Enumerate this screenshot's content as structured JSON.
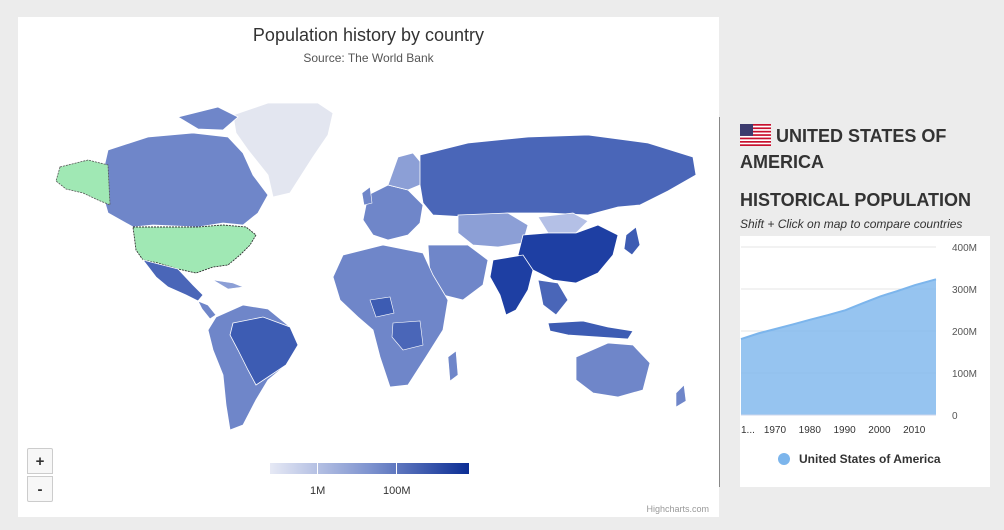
{
  "map": {
    "title": "Population history by country",
    "subtitle": "Source: The World Bank",
    "zoom_in_label": "+",
    "zoom_out_label": "-",
    "legend_labels": [
      "1M",
      "100M"
    ],
    "credits": "Highcharts.com",
    "selected_color": "#a0e8b4",
    "colors": {
      "low": "#e3e6f0",
      "mid": "#6f86c9",
      "high": "#1e3fa3"
    }
  },
  "sidebar": {
    "country_title": "United States of America",
    "flag_icon": "us-flag-icon",
    "heading": "Historical population",
    "hint": "Shift + Click on map to compare countries"
  },
  "chart_data": {
    "type": "area",
    "x": [
      1960,
      1965,
      1970,
      1975,
      1980,
      1985,
      1990,
      1995,
      2000,
      2005,
      2010,
      2016
    ],
    "series": [
      {
        "name": "United States of America",
        "values": [
          180.7,
          194.3,
          205.1,
          216.0,
          227.2,
          237.9,
          249.6,
          266.3,
          282.2,
          295.5,
          309.3,
          323.1
        ]
      }
    ],
    "x_tick_labels": [
      "1...",
      "1970",
      "1980",
      "1990",
      "2000",
      "2010"
    ],
    "y_tick_labels": [
      "0",
      "100M",
      "200M",
      "300M",
      "400M"
    ],
    "ylim": [
      0,
      400
    ],
    "color": "#7cb5ec",
    "grid": true,
    "legend_position": "bottom"
  }
}
